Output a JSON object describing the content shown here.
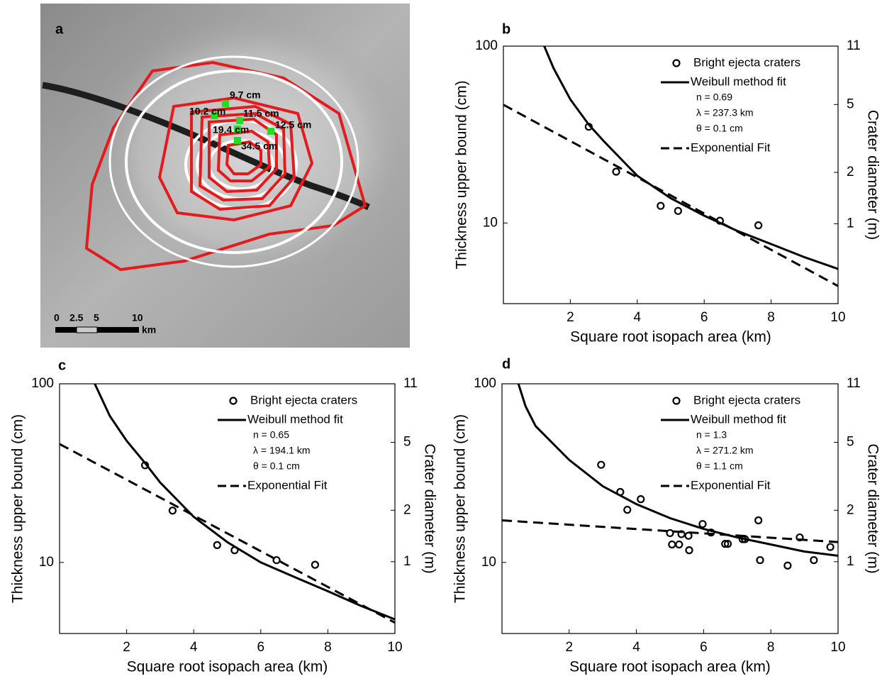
{
  "map": {
    "panel_label": "a",
    "contour_labels": [
      "9.7 cm",
      "10.2 cm",
      "11.5 cm",
      "12.5 cm",
      "19.4 cm",
      "34.5 cm"
    ],
    "scale_bar": {
      "labels": [
        "0",
        "2.5",
        "5",
        "10"
      ],
      "unit": "km"
    }
  },
  "chart_data": [
    {
      "type": "scatter",
      "panel_label": "b",
      "xlabel": "Square root isopach area (km)",
      "ylabel": "Thickness upper bound (cm)",
      "y2label": "Crater diameter (m)",
      "xlim": [
        0,
        10
      ],
      "xticks": [
        2,
        4,
        6,
        8,
        10
      ],
      "ylim": [
        3.5,
        100
      ],
      "yticks": [
        10,
        100
      ],
      "log_y": true,
      "y2lim": [
        0.34,
        11
      ],
      "y2ticks": [
        1,
        2,
        5,
        11
      ],
      "log_y2": true,
      "legend": "upper right",
      "series": [
        {
          "name": "Bright ejecta craters",
          "color": "#000000",
          "mode": "markers",
          "x": [
            2.55,
            3.37,
            4.7,
            5.22,
            6.47,
            7.62
          ],
          "values": [
            35,
            19.5,
            12.5,
            11.7,
            10.3,
            9.7
          ]
        },
        {
          "name": "Weibull method fit",
          "color": "#000000",
          "mode": "line",
          "x": [
            1.22,
            1.5,
            2,
            2.55,
            3,
            4,
            5,
            6,
            7,
            8,
            9,
            10
          ],
          "values": [
            100,
            75,
            50,
            36,
            29,
            18.5,
            13.8,
            11,
            9,
            7.6,
            6.4,
            5.5
          ]
        },
        {
          "name": "Exponential Fit",
          "color": "#000000",
          "mode": "dashed",
          "x": [
            0,
            10
          ],
          "values": [
            46.6,
            4.4
          ]
        }
      ],
      "annotations": [
        "n = 0.69",
        "λ = 237.3 km",
        "θ = 0.1 cm"
      ]
    },
    {
      "type": "scatter",
      "panel_label": "c",
      "xlabel": "Square root isopach area (km)",
      "ylabel": "Thickness upper bound (cm)",
      "y2label": "Crater diameter (m)",
      "xlim": [
        0,
        10
      ],
      "xticks": [
        2,
        4,
        6,
        8,
        10
      ],
      "ylim": [
        4,
        100
      ],
      "yticks": [
        10,
        100
      ],
      "log_y": true,
      "y2lim": [
        0.38,
        11
      ],
      "y2ticks": [
        1,
        2,
        5,
        11
      ],
      "log_y2": true,
      "legend": "upper right",
      "series": [
        {
          "name": "Bright ejecta craters",
          "color": "#000000",
          "mode": "markers",
          "x": [
            2.55,
            3.37,
            4.7,
            5.22,
            6.47,
            7.62
          ],
          "values": [
            35,
            19.5,
            12.5,
            11.7,
            10.3,
            9.7
          ]
        },
        {
          "name": "Weibull method fit",
          "color": "#000000",
          "mode": "line",
          "x": [
            1.05,
            1.5,
            2,
            2.55,
            3,
            4,
            5,
            6,
            7,
            8,
            9,
            10
          ],
          "values": [
            100,
            66,
            48,
            36,
            28,
            18,
            13,
            10,
            8.3,
            6.9,
            5.7,
            4.8
          ]
        },
        {
          "name": "Exponential Fit",
          "color": "#000000",
          "mode": "dashed",
          "x": [
            0,
            10
          ],
          "values": [
            46,
            4.6
          ]
        }
      ],
      "annotations": [
        "n = 0.65",
        "λ = 194.1 km",
        "θ = 0.1 cm"
      ]
    },
    {
      "type": "scatter",
      "panel_label": "d",
      "xlabel": "Square root isopach area (km)",
      "ylabel": "Thickness upper bound (cm)",
      "y2label": "Crater diameter (m)",
      "xlim": [
        0,
        10
      ],
      "xticks": [
        2,
        4,
        6,
        8,
        10
      ],
      "ylim": [
        4,
        100
      ],
      "yticks": [
        10,
        100
      ],
      "log_y": true,
      "y2lim": [
        0.38,
        11
      ],
      "y2ticks": [
        1,
        2,
        5,
        11
      ],
      "log_y2": true,
      "legend": "upper right",
      "series": [
        {
          "name": "Bright ejecta craters",
          "color": "#000000",
          "mode": "markers",
          "x": [
            2.95,
            3.52,
            3.73,
            4.13,
            5.0,
            5.06,
            5.27,
            5.34,
            5.55,
            5.57,
            5.97,
            6.22,
            6.64,
            6.72,
            7.16,
            7.23,
            7.63,
            7.68,
            8.5,
            8.86,
            9.28,
            9.77
          ],
          "values": [
            35.2,
            24.8,
            19.7,
            22.6,
            14.6,
            12.6,
            12.6,
            14.4,
            14.1,
            11.7,
            16.4,
            14.7,
            12.7,
            12.7,
            13.5,
            13.5,
            17.2,
            10.3,
            9.6,
            13.8,
            10.3,
            12.2
          ]
        },
        {
          "name": "Weibull method fit",
          "color": "#000000",
          "mode": "line",
          "x": [
            0.49,
            0.7,
            1,
            2,
            3,
            4,
            5,
            6,
            7,
            8,
            9,
            10
          ],
          "values": [
            100,
            75,
            58,
            37.5,
            26.7,
            21.2,
            17.7,
            15.4,
            13.8,
            12.6,
            11.5,
            10.9
          ]
        },
        {
          "name": "Exponential Fit",
          "color": "#000000",
          "mode": "dashed",
          "x": [
            0,
            10
          ],
          "values": [
            17.2,
            13
          ]
        }
      ],
      "annotations": [
        "n = 1.3",
        "λ = 271.2 km",
        "θ = 1.1 cm"
      ]
    }
  ]
}
